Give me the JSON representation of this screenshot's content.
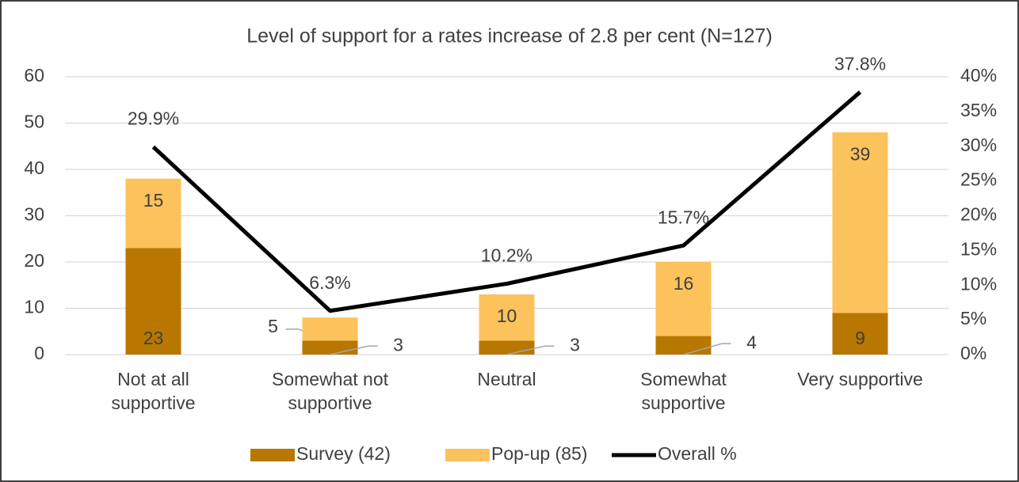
{
  "chart_data": {
    "type": "bar_line",
    "title": "Level of support for a rates increase of 2.8 per cent (N=127)",
    "categories": [
      [
        "Not at all",
        "supportive"
      ],
      [
        "Somewhat not",
        "supportive"
      ],
      [
        "Neutral"
      ],
      [
        "Somewhat",
        "supportive"
      ],
      [
        "Very supportive"
      ]
    ],
    "series": [
      {
        "name": "Survey (42)",
        "color": "#b87700",
        "values": [
          23,
          3,
          3,
          4,
          9
        ]
      },
      {
        "name": "Pop-up (85)",
        "color": "#fcc25c",
        "values": [
          15,
          5,
          10,
          16,
          39
        ]
      },
      {
        "name": "Overall %",
        "color": "#000000",
        "axis": "y2",
        "values": [
          29.9,
          6.3,
          10.2,
          15.7,
          37.8
        ],
        "value_labels": [
          "29.9%",
          "6.3%",
          "10.2%",
          "15.7%",
          "37.8%"
        ]
      }
    ],
    "ylim": [
      0,
      60
    ],
    "yticks": [
      0,
      10,
      20,
      30,
      40,
      50,
      60
    ],
    "y2lim": [
      0,
      40
    ],
    "y2ticks": [
      {
        "value": 0,
        "label": "0%"
      },
      {
        "value": 5,
        "label": "5%"
      },
      {
        "value": 10,
        "label": "10%"
      },
      {
        "value": 15,
        "label": "15%"
      },
      {
        "value": 20,
        "label": "20%"
      },
      {
        "value": 25,
        "label": "25%"
      },
      {
        "value": 30,
        "label": "30%"
      },
      {
        "value": 35,
        "label": "35%"
      },
      {
        "value": 40,
        "label": "40%"
      }
    ],
    "grid": true,
    "legend": "bottom"
  }
}
